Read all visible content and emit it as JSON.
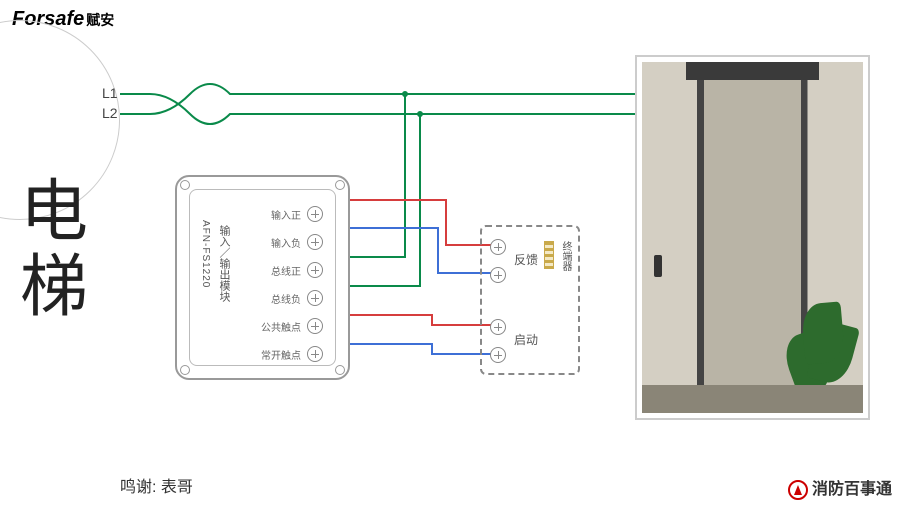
{
  "brand": {
    "en": "Forsafe",
    "cn": "赋安"
  },
  "title": "电梯",
  "credit_label": "鸣谢: ",
  "credit_name": "表哥",
  "footer_brand": "消防百事通",
  "bus": {
    "l1": "L1",
    "l2": "L2"
  },
  "module": {
    "model": "AFN-FS1220",
    "type": "输入／输出模块",
    "terminals": [
      "输入正",
      "输入负",
      "总线正",
      "总线负",
      "公共触点",
      "常开触点"
    ]
  },
  "termbox": {
    "feedback": "反馈",
    "start": "启动",
    "resistor": "终端器"
  },
  "photo_caption": "电梯",
  "colors": {
    "bus": "#0a8a4a",
    "red": "#d63d3d",
    "blue": "#3d6fd6",
    "green": "#0a8a4a"
  }
}
